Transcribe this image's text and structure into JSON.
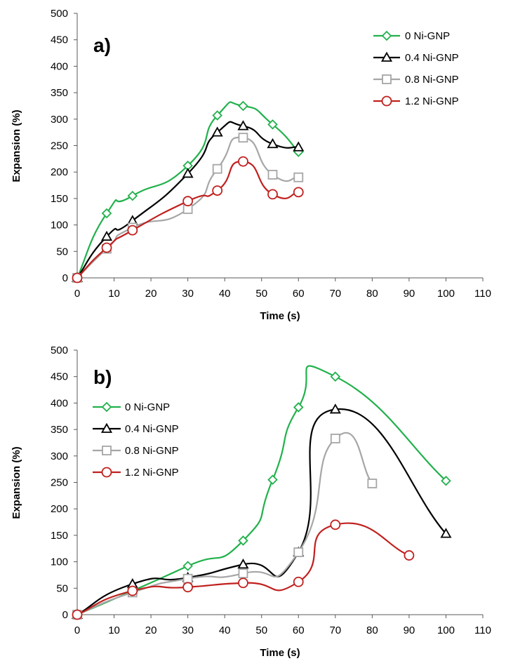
{
  "chart_data": [
    {
      "type": "line",
      "panel_label": "a)",
      "xlabel": "Time (s)",
      "ylabel": "Expansion (%)",
      "xlim": [
        0,
        110
      ],
      "ylim": [
        0,
        500
      ],
      "xticks": [
        0,
        10,
        20,
        30,
        40,
        50,
        60,
        70,
        80,
        90,
        100,
        110
      ],
      "yticks": [
        0,
        50,
        100,
        150,
        200,
        250,
        300,
        350,
        400,
        450,
        500
      ],
      "legend_position": "top-right",
      "series": [
        {
          "name": "0 Ni-GNP",
          "marker": "diamond",
          "color": "#22b14c",
          "x": [
            0,
            8,
            15,
            30,
            38,
            45,
            53,
            60
          ],
          "y": [
            0,
            122,
            155,
            212,
            307,
            325,
            290,
            238
          ]
        },
        {
          "name": "0.4 Ni-GNP",
          "marker": "triangle",
          "color": "#000000",
          "x": [
            0,
            8,
            15,
            30,
            38,
            45,
            53,
            60
          ],
          "y": [
            0,
            78,
            108,
            197,
            275,
            287,
            253,
            247
          ]
        },
        {
          "name": "0.8 Ni-GNP",
          "marker": "square",
          "color": "#a6a6a6",
          "x": [
            0,
            8,
            15,
            30,
            38,
            45,
            53,
            60
          ],
          "y": [
            0,
            55,
            95,
            130,
            206,
            265,
            195,
            190
          ]
        },
        {
          "name": "1.2 Ni-GNP",
          "marker": "circle",
          "color": "#c0201e",
          "x": [
            0,
            8,
            15,
            30,
            38,
            45,
            53,
            60
          ],
          "y": [
            0,
            57,
            90,
            145,
            165,
            220,
            158,
            162
          ]
        }
      ]
    },
    {
      "type": "line",
      "panel_label": "b)",
      "xlabel": "Time (s)",
      "ylabel": "Expansion (%)",
      "xlim": [
        0,
        110
      ],
      "ylim": [
        0,
        500
      ],
      "xticks": [
        0,
        10,
        20,
        30,
        40,
        50,
        60,
        70,
        80,
        90,
        100,
        110
      ],
      "yticks": [
        0,
        50,
        100,
        150,
        200,
        250,
        300,
        350,
        400,
        450,
        500
      ],
      "legend_position": "top-left",
      "series": [
        {
          "name": "0 Ni-GNP",
          "marker": "diamond",
          "color": "#22b14c",
          "x": [
            0,
            15,
            30,
            45,
            53,
            60,
            70,
            100
          ],
          "y": [
            0,
            45,
            92,
            140,
            255,
            392,
            450,
            253
          ]
        },
        {
          "name": "0.4 Ni-GNP",
          "marker": "triangle",
          "color": "#000000",
          "x": [
            0,
            15,
            30,
            45,
            60,
            70,
            100
          ],
          "y": [
            0,
            58,
            70,
            95,
            118,
            388,
            153
          ]
        },
        {
          "name": "0.8 Ni-GNP",
          "marker": "square",
          "color": "#a6a6a6",
          "x": [
            0,
            15,
            30,
            45,
            60,
            70,
            80
          ],
          "y": [
            0,
            42,
            68,
            78,
            118,
            333,
            248
          ]
        },
        {
          "name": "1.2 Ni-GNP",
          "marker": "circle",
          "color": "#c0201e",
          "x": [
            0,
            15,
            30,
            45,
            60,
            70,
            90
          ],
          "y": [
            0,
            45,
            52,
            60,
            62,
            170,
            112
          ]
        }
      ]
    }
  ]
}
